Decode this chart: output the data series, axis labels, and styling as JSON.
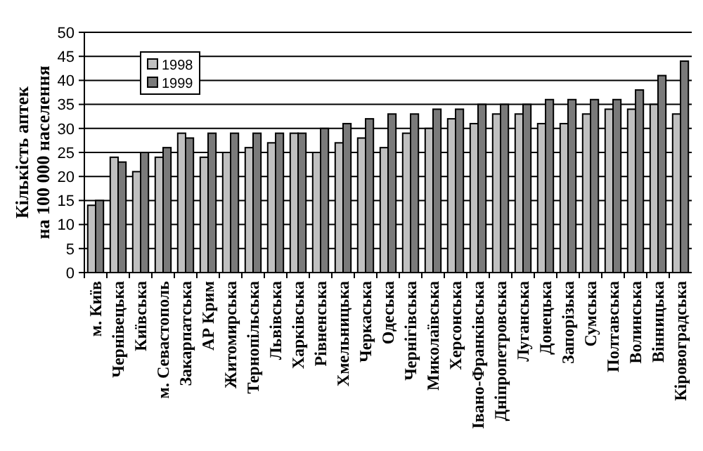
{
  "chart_data": {
    "type": "bar",
    "ylabel": "Кількість аптек на 100 000 населення",
    "categories": [
      "м. Київ",
      "Чернівецька",
      "Київська",
      "м. Севастополь",
      "Закарпатська",
      "АР Крим",
      "Житомирська",
      "Тернопільська",
      "Львівська",
      "Харківська",
      "Рівненська",
      "Хмельницька",
      "Черкаська",
      "Одеська",
      "Чернігівська",
      "Миколаївська",
      "Херсонська",
      "Івано-Франківська",
      "Дніпропетровська",
      "Луганська",
      "Донецька",
      "Запорізька",
      "Сумська",
      "Полтавська",
      "Волинська",
      "Вінницька",
      "Кіровоградська"
    ],
    "series": [
      {
        "name": "1998",
        "color": "#c0c0c0",
        "values": [
          14,
          24,
          21,
          24,
          29,
          24,
          25,
          26,
          27,
          29,
          25,
          27,
          28,
          26,
          29,
          30,
          32,
          31,
          33,
          33,
          31,
          31,
          33,
          34,
          34,
          35,
          33
        ]
      },
      {
        "name": "1999",
        "color": "#7a7a7a",
        "values": [
          15,
          23,
          25,
          26,
          28,
          29,
          29,
          29,
          29,
          29,
          30,
          31,
          32,
          33,
          33,
          34,
          34,
          35,
          35,
          35,
          36,
          36,
          36,
          36,
          38,
          41,
          44
        ]
      }
    ],
    "ylim": [
      0,
      50
    ],
    "yticks": [
      0,
      5,
      10,
      15,
      20,
      25,
      30,
      35,
      40,
      45,
      50
    ],
    "grid": "y",
    "legend": "top left"
  }
}
